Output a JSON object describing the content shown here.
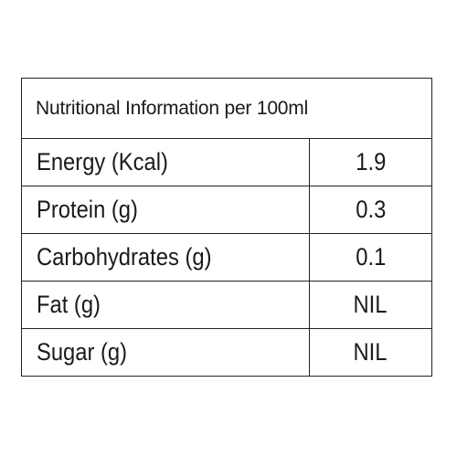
{
  "table": {
    "header": "Nutritional Information per 100ml",
    "rows": [
      {
        "label": "Energy (Kcal)",
        "value": "1.9"
      },
      {
        "label": "Protein (g)",
        "value": "0.3"
      },
      {
        "label": "Carbohydrates (g)",
        "value": "0.1"
      },
      {
        "label": "Fat (g)",
        "value": "NIL"
      },
      {
        "label": "Sugar (g)",
        "value": "NIL"
      }
    ]
  }
}
